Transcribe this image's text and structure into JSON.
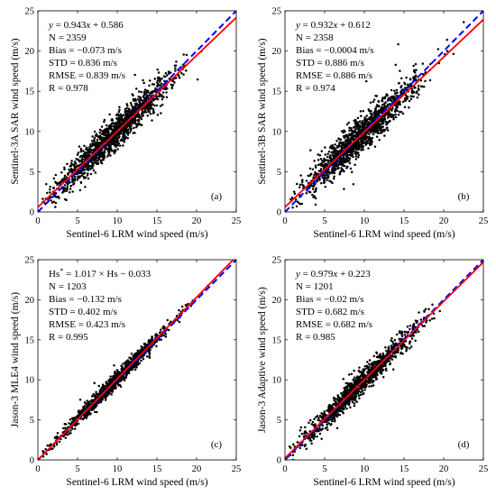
{
  "colors": {
    "points": "#000000",
    "fit_line": "#ff0000",
    "identity_line": "#0000ff",
    "axes": "#000000",
    "background": "#ffffff"
  },
  "chart_data": [
    {
      "type": "scatter",
      "panel_label": "(a)",
      "xlabel": "Sentinel-6 LRM wind speed (m/s)",
      "ylabel": "Sentinel-3A SAR wind speed (m/s)",
      "xlim": [
        0,
        25
      ],
      "ylim": [
        0,
        25
      ],
      "xticks": [
        0,
        5,
        10,
        15,
        20,
        25
      ],
      "yticks": [
        0,
        5,
        10,
        15,
        20,
        25
      ],
      "grid": false,
      "fit": {
        "slope": 0.943,
        "intercept": 0.586,
        "color": "#ff0000",
        "style": "solid"
      },
      "identity": {
        "color": "#0000ff",
        "style": "dashed"
      },
      "scatter_cloud": {
        "x_range": [
          0.5,
          22
        ],
        "y_spread": 1.0,
        "n": 2359
      },
      "stats": [
        {
          "lead": "y",
          "rest": " = 0.943",
          "var": "x",
          "tail": " + 0.586"
        },
        {
          "text": "N = 2359"
        },
        {
          "text": "Bias = −0.073 m/s"
        },
        {
          "text": "STD = 0.836 m/s"
        },
        {
          "text": "RMSE = 0.839 m/s"
        },
        {
          "text": "R = 0.978"
        }
      ]
    },
    {
      "type": "scatter",
      "panel_label": "(b)",
      "xlabel": "Sentinel-6 LRM wind speed (m/s)",
      "ylabel": "Sentinel-3B SAR wind speed (m/s)",
      "xlim": [
        0,
        25
      ],
      "ylim": [
        0,
        25
      ],
      "xticks": [
        0,
        5,
        10,
        15,
        20,
        25
      ],
      "yticks": [
        0,
        5,
        10,
        15,
        20,
        25
      ],
      "grid": false,
      "fit": {
        "slope": 0.932,
        "intercept": 0.612,
        "color": "#ff0000",
        "style": "solid"
      },
      "identity": {
        "color": "#0000ff",
        "style": "dashed"
      },
      "scatter_cloud": {
        "x_range": [
          0.5,
          23
        ],
        "y_spread": 1.05,
        "n": 2358
      },
      "stats": [
        {
          "lead": "y",
          "rest": " = 0.932",
          "var": "x",
          "tail": " + 0.612"
        },
        {
          "text": "N = 2358"
        },
        {
          "text": "Bias = −0.0004 m/s"
        },
        {
          "text": "STD = 0.886 m/s"
        },
        {
          "text": "RMSE = 0.886 m/s"
        },
        {
          "text": "R = 0.974"
        }
      ]
    },
    {
      "type": "scatter",
      "panel_label": "(c)",
      "xlabel": "Sentinel-6 LRM wind speed (m/s)",
      "ylabel": "Jason-3 MLE4 wind speed (m/s)",
      "xlim": [
        0,
        25
      ],
      "ylim": [
        0,
        25
      ],
      "xticks": [
        0,
        5,
        10,
        15,
        20,
        25
      ],
      "yticks": [
        0,
        5,
        10,
        15,
        20,
        25
      ],
      "grid": false,
      "fit": {
        "slope": 1.017,
        "intercept": -0.033,
        "color": "#ff0000",
        "style": "solid"
      },
      "identity": {
        "color": "#0000ff",
        "style": "dashed"
      },
      "scatter_cloud": {
        "x_range": [
          0.5,
          22
        ],
        "y_spread": 0.45,
        "n": 1203
      },
      "stats": [
        {
          "lead": "Hs",
          "sup": "*",
          "rest": " = 1.017 × Hs − 0.033"
        },
        {
          "text": "N = 1203"
        },
        {
          "text": "Bias = −0.132 m/s"
        },
        {
          "text": "STD = 0.402 m/s"
        },
        {
          "text": "RMSE = 0.423 m/s"
        },
        {
          "text": "R = 0.995"
        }
      ]
    },
    {
      "type": "scatter",
      "panel_label": "(d)",
      "xlabel": "Sentinel-6 LRM wind speed (m/s)",
      "ylabel": "Jason-3 Adaptive wind speed (m/s)",
      "xlim": [
        0,
        25
      ],
      "ylim": [
        0,
        25
      ],
      "xticks": [
        0,
        5,
        10,
        15,
        20,
        25
      ],
      "yticks": [
        0,
        5,
        10,
        15,
        20,
        25
      ],
      "grid": false,
      "fit": {
        "slope": 0.979,
        "intercept": 0.223,
        "color": "#ff0000",
        "style": "solid"
      },
      "identity": {
        "color": "#0000ff",
        "style": "dashed"
      },
      "scatter_cloud": {
        "x_range": [
          0.5,
          23
        ],
        "y_spread": 0.72,
        "n": 1201
      },
      "stats": [
        {
          "lead": "y",
          "rest": " = 0.979",
          "var": "x",
          "tail": " + 0.223"
        },
        {
          "text": "N = 1201"
        },
        {
          "text": "Bias = −0.02 m/s"
        },
        {
          "text": "STD = 0.682 m/s"
        },
        {
          "text": "RMSE = 0.682 m/s"
        },
        {
          "text": "R = 0.985"
        }
      ]
    }
  ]
}
